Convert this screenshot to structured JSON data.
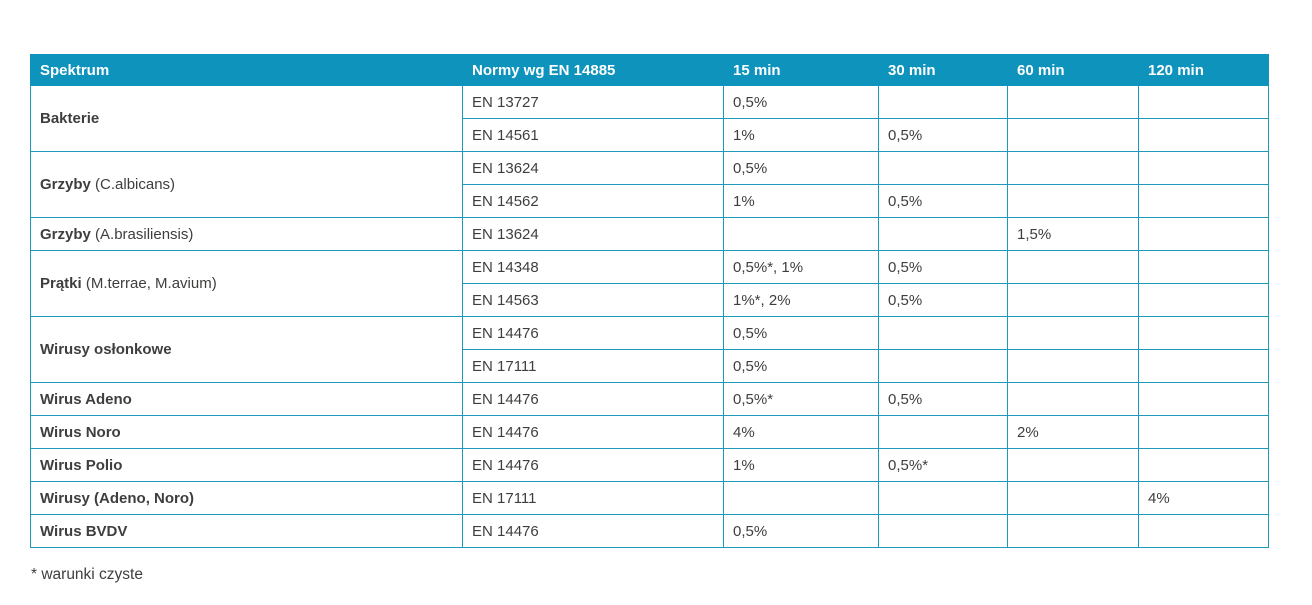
{
  "colors": {
    "header_background": "#0d93bc",
    "header_text": "#ffffff",
    "table_border": "#1e98bd",
    "body_text": "#3e3e3d",
    "page_background": "#ffffff"
  },
  "chart_data": {
    "type": "table",
    "title": "",
    "columns": [
      {
        "key": "spektrum",
        "label": "Spektrum"
      },
      {
        "key": "normy",
        "label": "Normy wg EN 14885"
      },
      {
        "key": "15min",
        "label": "15 min"
      },
      {
        "key": "30min",
        "label": "30 min"
      },
      {
        "key": "60min",
        "label": "60 min"
      },
      {
        "key": "120min",
        "label": "120 min"
      }
    ],
    "groups": [
      {
        "spectrum_bold": "Bakterie",
        "spectrum_rest": "",
        "rows": [
          {
            "norm": "EN 13727",
            "values": [
              "0,5%",
              "",
              "",
              ""
            ]
          },
          {
            "norm": "EN 14561",
            "values": [
              "1%",
              "0,5%",
              "",
              ""
            ]
          }
        ]
      },
      {
        "spectrum_bold": "Grzyby",
        "spectrum_rest": " (C.albicans)",
        "rows": [
          {
            "norm": "EN 13624",
            "values": [
              "0,5%",
              "",
              "",
              ""
            ]
          },
          {
            "norm": "EN 14562",
            "values": [
              "1%",
              "0,5%",
              "",
              ""
            ]
          }
        ]
      },
      {
        "spectrum_bold": "Grzyby",
        "spectrum_rest": " (A.brasiliensis)",
        "rows": [
          {
            "norm": "EN 13624",
            "values": [
              "",
              "",
              "1,5%",
              ""
            ]
          }
        ]
      },
      {
        "spectrum_bold": "Prątki",
        "spectrum_rest": " (M.terrae, M.avium)",
        "rows": [
          {
            "norm": "EN 14348",
            "values": [
              "0,5%*, 1%",
              "0,5%",
              "",
              ""
            ]
          },
          {
            "norm": "EN 14563",
            "values": [
              "1%*, 2%",
              "0,5%",
              "",
              ""
            ]
          }
        ]
      },
      {
        "spectrum_bold": "Wirusy osłonkowe",
        "spectrum_rest": "",
        "rows": [
          {
            "norm": "EN 14476",
            "values": [
              "0,5%",
              "",
              "",
              ""
            ]
          },
          {
            "norm": "EN 17111",
            "values": [
              "0,5%",
              "",
              "",
              ""
            ]
          }
        ]
      },
      {
        "spectrum_bold": "Wirus Adeno",
        "spectrum_rest": "",
        "rows": [
          {
            "norm": "EN 14476",
            "values": [
              "0,5%*",
              "0,5%",
              "",
              ""
            ]
          }
        ]
      },
      {
        "spectrum_bold": "Wirus Noro",
        "spectrum_rest": "",
        "rows": [
          {
            "norm": "EN 14476",
            "values": [
              "4%",
              "",
              "2%",
              ""
            ]
          }
        ]
      },
      {
        "spectrum_bold": "Wirus Polio",
        "spectrum_rest": "",
        "rows": [
          {
            "norm": "EN 14476",
            "values": [
              "1%",
              "0,5%*",
              "",
              ""
            ]
          }
        ]
      },
      {
        "spectrum_bold": "Wirusy (Adeno, Noro)",
        "spectrum_rest": "",
        "rows": [
          {
            "norm": "EN 17111",
            "values": [
              "",
              "",
              "",
              "4%"
            ]
          }
        ]
      },
      {
        "spectrum_bold": "Wirus BVDV",
        "spectrum_rest": "",
        "rows": [
          {
            "norm": "EN 14476",
            "values": [
              "0,5%",
              "",
              "",
              ""
            ]
          }
        ]
      }
    ],
    "footnote": "* warunki czyste",
    "layout": {
      "grid": "on",
      "header_position": "top"
    }
  }
}
